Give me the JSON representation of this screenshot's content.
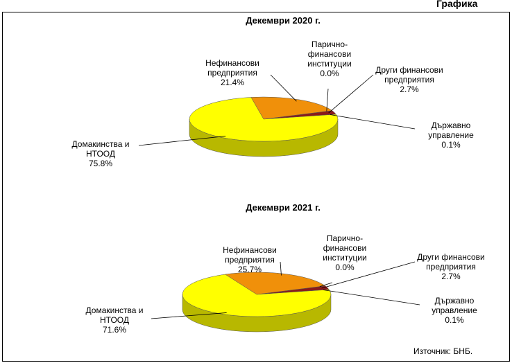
{
  "header": "Графика",
  "source": "Източник: БНБ.",
  "chart_data": [
    {
      "type": "pie",
      "title": "Декември 2020 г.",
      "categories": [
        "Държавно управление",
        "Други финансови предприятия",
        "Парично-финансови институции",
        "Нефинансови предприятия",
        "Домакинства и НТООД"
      ],
      "values": [
        0.1,
        2.7,
        0.0,
        21.4,
        75.8
      ],
      "value_labels": [
        "0.1%",
        "2.7%",
        "0.0%",
        "21.4%",
        "75.8%"
      ],
      "colors": [
        "#993300",
        "#8b1a1a",
        "#c0c0c0",
        "#f0900a",
        "#ffff00"
      ]
    },
    {
      "type": "pie",
      "title": "Декември 2021 г.",
      "categories": [
        "Държавно управление",
        "Други финансови предприятия",
        "Парично-финансови институции",
        "Нефинансови предприятия",
        "Домакинства и НТООД"
      ],
      "values": [
        0.1,
        2.7,
        0.0,
        25.7,
        71.6
      ],
      "value_labels": [
        "0.1%",
        "2.7%",
        "0.0%",
        "25.7%",
        "71.6%"
      ],
      "colors": [
        "#993300",
        "#8b1a1a",
        "#c0c0c0",
        "#f0900a",
        "#ffff00"
      ]
    }
  ]
}
